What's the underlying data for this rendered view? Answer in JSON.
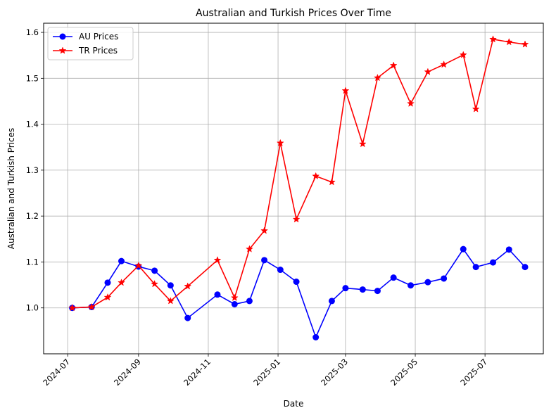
{
  "chart_data": {
    "type": "line",
    "title": "Australian and Turkish Prices Over Time",
    "xlabel": "Date",
    "ylabel": "Australian and Turkish Prices",
    "xlim": [
      "2024-06-10",
      "2025-08-21"
    ],
    "ylim": [
      0.9,
      1.62
    ],
    "x_ticks": [
      "2024-07-01",
      "2024-09-01",
      "2024-11-01",
      "2025-01-01",
      "2025-03-01",
      "2025-05-01",
      "2025-07-01"
    ],
    "x_tick_labels": [
      "2024-07",
      "2024-09",
      "2024-11",
      "2025-01",
      "2025-03",
      "2025-05",
      "2025-07"
    ],
    "y_ticks": [
      1.0,
      1.1,
      1.2,
      1.3,
      1.4,
      1.5,
      1.6
    ],
    "y_tick_labels": [
      "1.0",
      "1.1",
      "1.2",
      "1.3",
      "1.4",
      "1.5",
      "1.6"
    ],
    "grid": true,
    "legend_position": "upper-left",
    "series": [
      {
        "name": "AU Prices",
        "color": "#0000ff",
        "marker": "circle",
        "x": [
          "2024-07-05",
          "2024-07-22",
          "2024-08-05",
          "2024-08-17",
          "2024-09-01",
          "2024-09-15",
          "2024-09-29",
          "2024-10-14",
          "2024-11-09",
          "2024-11-24",
          "2024-12-07",
          "2024-12-20",
          "2025-01-03",
          "2025-01-17",
          "2025-02-03",
          "2025-02-17",
          "2025-03-01",
          "2025-03-16",
          "2025-03-29",
          "2025-04-12",
          "2025-04-27",
          "2025-05-12",
          "2025-05-26",
          "2025-06-12",
          "2025-06-23",
          "2025-07-08",
          "2025-07-22",
          "2025-08-05"
        ],
        "values": [
          1.0,
          1.002,
          1.055,
          1.102,
          1.09,
          1.081,
          1.049,
          0.978,
          1.029,
          1.008,
          1.015,
          1.104,
          1.083,
          1.057,
          0.936,
          1.015,
          1.043,
          1.04,
          1.037,
          1.066,
          1.049,
          1.056,
          1.064,
          1.128,
          1.089,
          1.099,
          1.127,
          1.089
        ]
      },
      {
        "name": "TR Prices",
        "color": "#ff0000",
        "marker": "star",
        "x": [
          "2024-07-05",
          "2024-07-22",
          "2024-08-05",
          "2024-08-17",
          "2024-09-01",
          "2024-09-15",
          "2024-09-29",
          "2024-10-14",
          "2024-11-09",
          "2024-11-24",
          "2024-12-07",
          "2024-12-20",
          "2025-01-03",
          "2025-01-17",
          "2025-02-03",
          "2025-02-17",
          "2025-03-01",
          "2025-03-16",
          "2025-03-29",
          "2025-04-12",
          "2025-04-27",
          "2025-05-12",
          "2025-05-26",
          "2025-06-12",
          "2025-06-23",
          "2025-07-08",
          "2025-07-22",
          "2025-08-05"
        ],
        "values": [
          1.0,
          1.002,
          1.023,
          1.055,
          1.092,
          1.052,
          1.015,
          1.047,
          1.104,
          1.022,
          1.128,
          1.168,
          1.359,
          1.193,
          1.287,
          1.274,
          1.473,
          1.357,
          1.501,
          1.528,
          1.445,
          1.514,
          1.53,
          1.551,
          1.433,
          1.585,
          1.579,
          1.574
        ]
      }
    ]
  }
}
